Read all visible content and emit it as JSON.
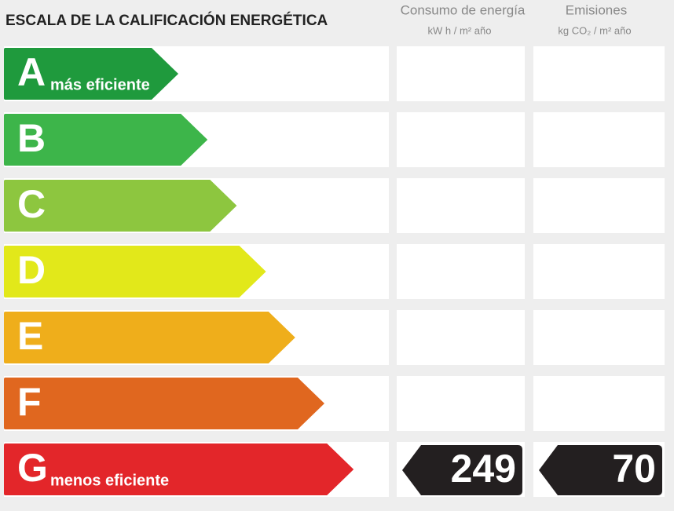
{
  "title": "ESCALA DE LA CALIFICACIÓN ENERGÉTICA",
  "columns": [
    {
      "name": "Consumo de energía",
      "unit": "kW h / m² año"
    },
    {
      "name": "Emisiones",
      "unit": "kg CO₂ / m² año"
    }
  ],
  "rows": [
    {
      "letter": "A",
      "label": "más eficiente"
    },
    {
      "letter": "B"
    },
    {
      "letter": "C"
    },
    {
      "letter": "D"
    },
    {
      "letter": "E"
    },
    {
      "letter": "F"
    },
    {
      "letter": "G",
      "label": "menos eficiente",
      "values": [
        249,
        70
      ]
    }
  ]
}
